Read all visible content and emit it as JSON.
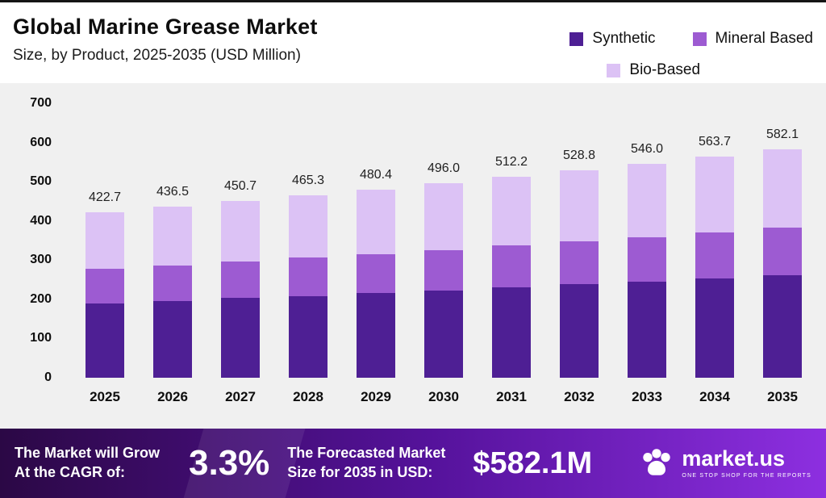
{
  "header": {
    "title": "Global Marine Grease Market",
    "subtitle": "Size, by Product, 2025-2035 (USD Million)"
  },
  "legend": [
    {
      "label": "Synthetic",
      "color": "#4e1f94"
    },
    {
      "label": "Mineral Based",
      "color": "#9d5bd2"
    },
    {
      "label": "Bio-Based",
      "color": "#dcc2f5"
    }
  ],
  "chart_data": {
    "type": "bar",
    "stacked": true,
    "title": "Global Marine Grease Market Size, by Product, 2025-2035 (USD Million)",
    "xlabel": "",
    "ylabel": "",
    "ylim": [
      0,
      700
    ],
    "yticks": [
      0,
      100,
      200,
      300,
      400,
      500,
      600,
      700
    ],
    "grid": false,
    "legend_position": "top-right",
    "categories": [
      "2025",
      "2026",
      "2027",
      "2028",
      "2029",
      "2030",
      "2031",
      "2032",
      "2033",
      "2034",
      "2035"
    ],
    "totals": [
      422.7,
      436.5,
      450.7,
      465.3,
      480.4,
      496.0,
      512.2,
      528.8,
      546.0,
      563.7,
      582.1
    ],
    "series": [
      {
        "name": "Synthetic",
        "color": "#4e1f94",
        "values": [
          190.0,
          196.0,
          203.0,
          209.0,
          216.0,
          223.0,
          230.0,
          238.0,
          245.0,
          253.0,
          261.0
        ]
      },
      {
        "name": "Mineral Based",
        "color": "#9d5bd2",
        "values": [
          88.0,
          91.0,
          94.0,
          97.0,
          100.0,
          103.0,
          107.0,
          110.0,
          114.0,
          118.0,
          122.0
        ]
      },
      {
        "name": "Bio-Based",
        "color": "#dcc2f5",
        "values": [
          144.7,
          149.5,
          153.7,
          159.3,
          164.4,
          170.0,
          175.2,
          180.8,
          187.0,
          192.7,
          199.1
        ]
      }
    ]
  },
  "banner": {
    "cagr_label": "The Market will Grow At the CAGR of:",
    "cagr_value": "3.3%",
    "forecast_label": "The Forecasted Market Size for 2035 in USD:",
    "forecast_value": "$582.1M",
    "brand": "market.us",
    "brand_tagline": "ONE STOP SHOP FOR THE REPORTS"
  },
  "colors": {
    "synthetic": "#4e1f94",
    "mineral_based": "#9d5bd2",
    "bio_based": "#dcc2f5",
    "plot_background": "#f0f0f0",
    "banner_gradient_from": "#2b0845",
    "banner_gradient_to": "#8d2fe0"
  }
}
